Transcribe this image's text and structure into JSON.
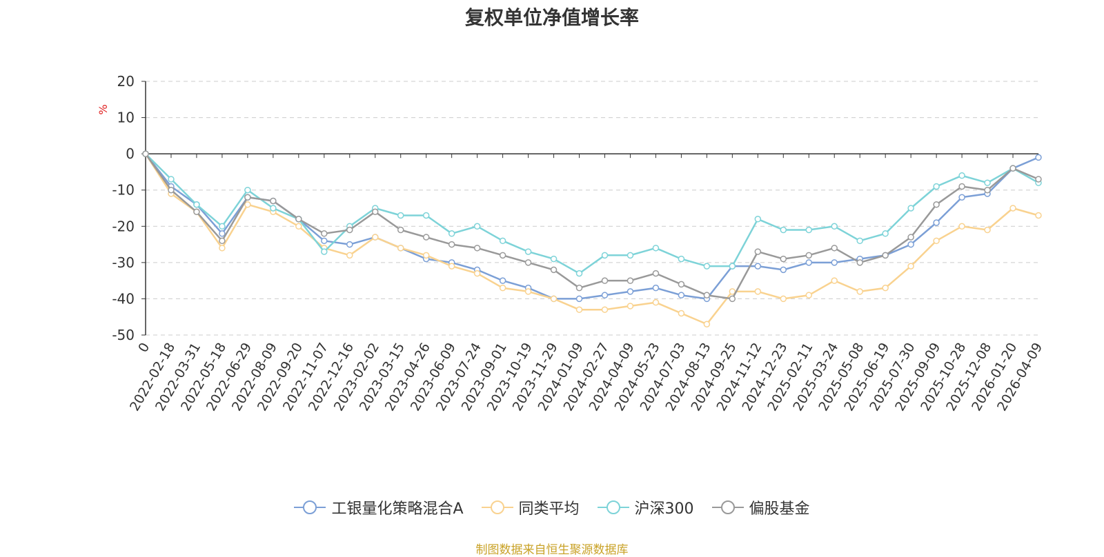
{
  "chart_data": {
    "type": "line",
    "title": "复权单位净值增长率",
    "ylabel": "%",
    "xlabel": "",
    "ylim": [
      -50,
      20
    ],
    "yticks": [
      "20",
      "10",
      "0",
      "-10",
      "-20",
      "-30",
      "-40",
      "-50"
    ],
    "x": [
      "0",
      "2022-02-18",
      "2022-03-31",
      "2022-05-18",
      "2022-06-29",
      "2022-08-09",
      "2022-09-20",
      "2022-11-07",
      "2022-12-16",
      "2023-02-02",
      "2023-03-15",
      "2023-04-26",
      "2023-06-09",
      "2023-07-24",
      "2023-09-01",
      "2023-10-19",
      "2023-11-29",
      "2024-01-09",
      "2024-02-27",
      "2024-04-09",
      "2024-05-23",
      "2024-07-03",
      "2024-08-13",
      "2024-09-25",
      "2024-11-12",
      "2024-12-23",
      "2025-02-11",
      "2025-03-24",
      "2025-05-08",
      "2025-06-19",
      "2025-07-30",
      "2025-09-09",
      "2025-10-28",
      "2025-12-08",
      "2026-01-20",
      "2026-04-09"
    ],
    "grid": true,
    "legend_position": "bottom",
    "series": [
      {
        "name": "工银量化策略混合A",
        "color": "#7b9fd6",
        "values": [
          0,
          -9,
          -14,
          -22,
          -12,
          -13,
          -18,
          -24,
          -25,
          -23,
          -26,
          -29,
          -30,
          -32,
          -35,
          -37,
          -40,
          -40,
          -39,
          -38,
          -37,
          -39,
          -40,
          -31,
          -31,
          -32,
          -30,
          -30,
          -29,
          -28,
          -25,
          -19,
          -12,
          -11,
          -4,
          -1
        ]
      },
      {
        "name": "同类平均",
        "color": "#f9d28f",
        "values": [
          0,
          -11,
          -16,
          -26,
          -14,
          -16,
          -20,
          -26,
          -28,
          -23,
          -26,
          -28,
          -31,
          -33,
          -37,
          -38,
          -40,
          -43,
          -43,
          -42,
          -41,
          -44,
          -47,
          -38,
          -38,
          -40,
          -39,
          -35,
          -38,
          -37,
          -31,
          -24,
          -20,
          -21,
          -15,
          -17
        ]
      },
      {
        "name": "沪深300",
        "color": "#7dd3d8",
        "values": [
          0,
          -7,
          -14,
          -20,
          -10,
          -15,
          -18,
          -27,
          -20,
          -15,
          -17,
          -17,
          -22,
          -20,
          -24,
          -27,
          -29,
          -33,
          -28,
          -28,
          -26,
          -29,
          -31,
          -31,
          -18,
          -21,
          -21,
          -20,
          -24,
          -22,
          -15,
          -9,
          -6,
          -8,
          -4,
          -8
        ]
      },
      {
        "name": "偏股基金",
        "color": "#999999",
        "values": [
          0,
          -10,
          -16,
          -24,
          -12,
          -13,
          -18,
          -22,
          -21,
          -16,
          -21,
          -23,
          -25,
          -26,
          -28,
          -30,
          -32,
          -37,
          -35,
          -35,
          -33,
          -36,
          -39,
          -40,
          -27,
          -29,
          -28,
          -26,
          -30,
          -28,
          -23,
          -14,
          -9,
          -10,
          -4,
          -7
        ]
      }
    ]
  },
  "source_note": "制图数据来自恒生聚源数据库"
}
